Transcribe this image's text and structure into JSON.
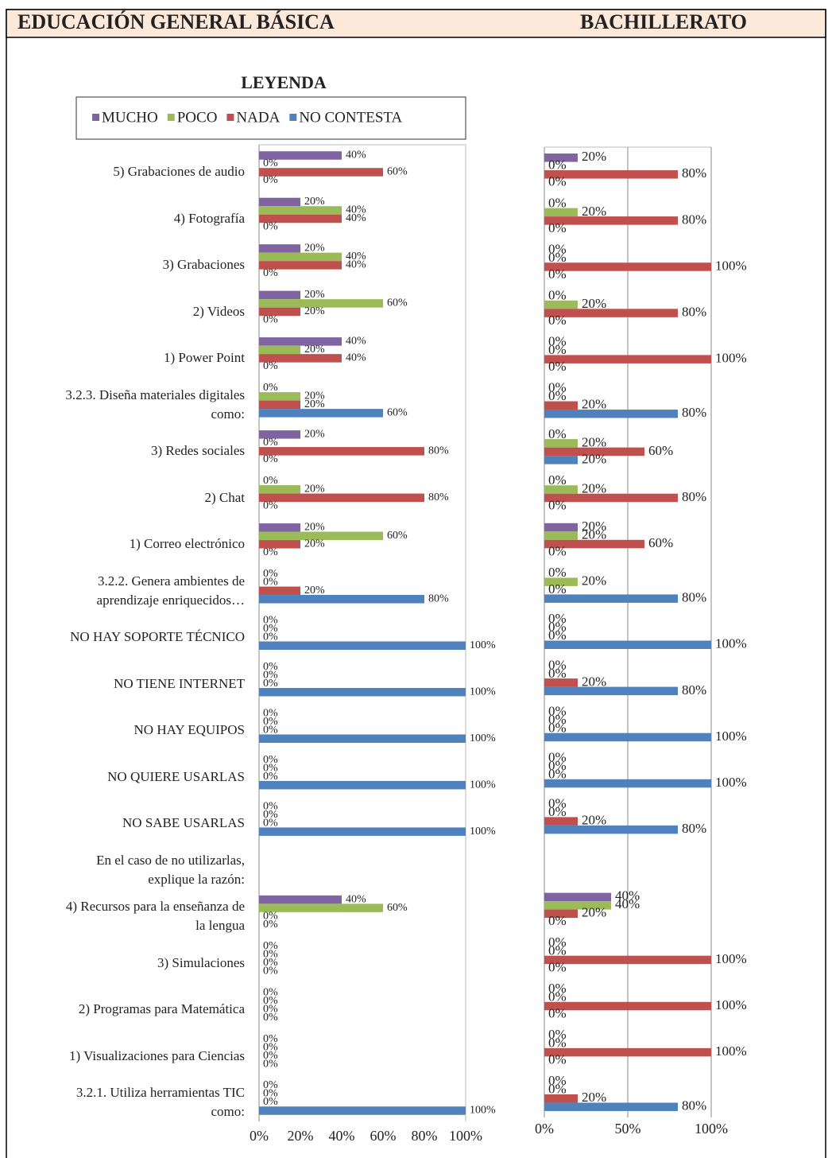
{
  "header": {
    "left": "EDUCACIÓN GENERAL BÁSICA",
    "right": "BACHILLERATO"
  },
  "chart_data": [
    {
      "type": "bar",
      "horizontal": true,
      "legend_title": "LEYENDA",
      "categories": [
        "5) Grabaciones de audio",
        "4) Fotografía",
        "3) Grabaciones",
        "2) Videos",
        "1) Power Point",
        "3.2.3. Diseña materiales digitales como:",
        "3) Redes sociales",
        "2) Chat",
        "1) Correo electrónico",
        "3.2.2. Genera ambientes de aprendizaje enriquecidos…",
        "NO HAY SOPORTE TÉCNICO",
        "NO TIENE INTERNET",
        "NO HAY EQUIPOS",
        "NO QUIERE USARLAS",
        "NO SABE USARLAS",
        "En el caso de no utilizarlas, explique la razón:",
        "4) Recursos para la enseñanza de la lengua",
        "3) Simulaciones",
        "2) Programas para Matemática",
        "1) Visualizaciones para Ciencias",
        "3.2.1. Utiliza herramientas TIC como:"
      ],
      "series": [
        {
          "name": "MUCHO",
          "color": "#8064a2",
          "values": [
            40,
            20,
            20,
            20,
            40,
            0,
            20,
            0,
            20,
            0,
            0,
            0,
            0,
            0,
            0,
            null,
            40,
            0,
            0,
            0,
            0
          ],
          "value_labels": [
            "40%",
            "20%",
            "20%",
            "20%",
            "40%",
            "0%",
            "20%",
            "0%",
            "20%",
            "0%",
            "0%",
            "0%",
            "0%",
            "0%",
            "0%",
            null,
            "40%",
            "0%",
            "0%",
            "0%",
            "0%"
          ]
        },
        {
          "name": "POCO",
          "color": "#9bbb59",
          "values": [
            0,
            40,
            40,
            60,
            20,
            20,
            0,
            20,
            60,
            0,
            0,
            0,
            0,
            0,
            0,
            null,
            60,
            0,
            0,
            0,
            0
          ],
          "value_labels": [
            "0%",
            "40%",
            "40%",
            "60%",
            "20%",
            "20%",
            "0%",
            "20%",
            "60%",
            "0%",
            "0%",
            "0%",
            "0%",
            "0%",
            "0%",
            null,
            "60%",
            "0%",
            "0%",
            "0%",
            "0%"
          ]
        },
        {
          "name": "NADA",
          "color": "#c0504d",
          "values": [
            60,
            40,
            40,
            20,
            40,
            20,
            80,
            80,
            20,
            20,
            0,
            0,
            0,
            0,
            0,
            null,
            0,
            0,
            0,
            0,
            0
          ],
          "value_labels": [
            "60%",
            "40%",
            "40%",
            "20%",
            "40%",
            "20%",
            "80%",
            "80%",
            "20%",
            "20%",
            "0%",
            "0%",
            "0%",
            "0%",
            "0%",
            null,
            "0%",
            "0%",
            "0%",
            "0%",
            "0%"
          ]
        },
        {
          "name": "NO CONTESTA",
          "color": "#4f81bd",
          "values": [
            0,
            0,
            0,
            0,
            0,
            60,
            0,
            0,
            0,
            80,
            100,
            100,
            100,
            100,
            100,
            null,
            0,
            0,
            0,
            0,
            100
          ],
          "value_labels": [
            "0%",
            "0%",
            "0%",
            "0%",
            "0%",
            "60%",
            "0%",
            "0%",
            "0%",
            "80%",
            "100%",
            "100%",
            "100%",
            "100%",
            "100%",
            null,
            "0%",
            "0%",
            "0%",
            "0%",
            "100%"
          ]
        }
      ],
      "xlim": [
        0,
        100
      ],
      "xticks": [
        {
          "value": 0,
          "label": "0%"
        },
        {
          "value": 20,
          "label": "20%"
        },
        {
          "value": 40,
          "label": "40%"
        },
        {
          "value": 60,
          "label": "60%"
        },
        {
          "value": 80,
          "label": "80%"
        },
        {
          "value": 100,
          "label": "100%"
        }
      ],
      "grid": false
    },
    {
      "type": "bar",
      "horizontal": true,
      "series": [
        {
          "color": "#8064a2",
          "values": [
            20,
            0,
            0,
            0,
            0,
            0,
            0,
            0,
            20,
            0,
            0,
            0,
            0,
            0,
            0,
            null,
            40,
            0,
            0,
            0,
            0
          ],
          "value_labels": [
            "20%",
            "0%",
            "0%",
            "0%",
            "0%",
            "0%",
            "0%",
            "0%",
            "20%",
            "0%",
            "0%",
            "0%",
            "0%",
            "0%",
            "0%",
            null,
            "40%",
            "0%",
            "0%",
            "0%",
            "0%"
          ]
        },
        {
          "color": "#9bbb59",
          "values": [
            0,
            20,
            0,
            20,
            0,
            0,
            20,
            20,
            20,
            20,
            0,
            0,
            0,
            0,
            0,
            null,
            40,
            0,
            0,
            0,
            0
          ],
          "value_labels": [
            "0%",
            "20%",
            "0%",
            "20%",
            "0%",
            "0%",
            "20%",
            "20%",
            "20%",
            "20%",
            "0%",
            "0%",
            "0%",
            "0%",
            "0%",
            null,
            "40%",
            "0%",
            "0%",
            "0%",
            "0%"
          ]
        },
        {
          "color": "#c0504d",
          "values": [
            80,
            80,
            100,
            80,
            100,
            20,
            60,
            80,
            60,
            0,
            0,
            20,
            0,
            0,
            20,
            null,
            20,
            100,
            100,
            100,
            20
          ],
          "value_labels": [
            "80%",
            "80%",
            "100%",
            "80%",
            "100%",
            "20%",
            "60%",
            "80%",
            "60%",
            "0%",
            "0%",
            "20%",
            "0%",
            "0%",
            "20%",
            null,
            "20%",
            "100%",
            "100%",
            "100%",
            "20%"
          ]
        },
        {
          "color": "#4f81bd",
          "values": [
            0,
            0,
            0,
            0,
            0,
            80,
            20,
            0,
            0,
            80,
            100,
            80,
            100,
            100,
            80,
            null,
            0,
            0,
            0,
            0,
            80
          ],
          "value_labels": [
            "0%",
            "0%",
            "0%",
            "0%",
            "0%",
            "80%",
            "20%",
            "0%",
            "0%",
            "80%",
            "100%",
            "80%",
            "100%",
            "100%",
            "80%",
            null,
            "0%",
            "0%",
            "0%",
            "0%",
            "80%"
          ]
        }
      ],
      "xlim": [
        0,
        100
      ],
      "xticks": [
        {
          "value": 0,
          "label": "0%"
        },
        {
          "value": 50,
          "label": "50%"
        },
        {
          "value": 100,
          "label": "100%"
        }
      ],
      "grid": true
    }
  ]
}
